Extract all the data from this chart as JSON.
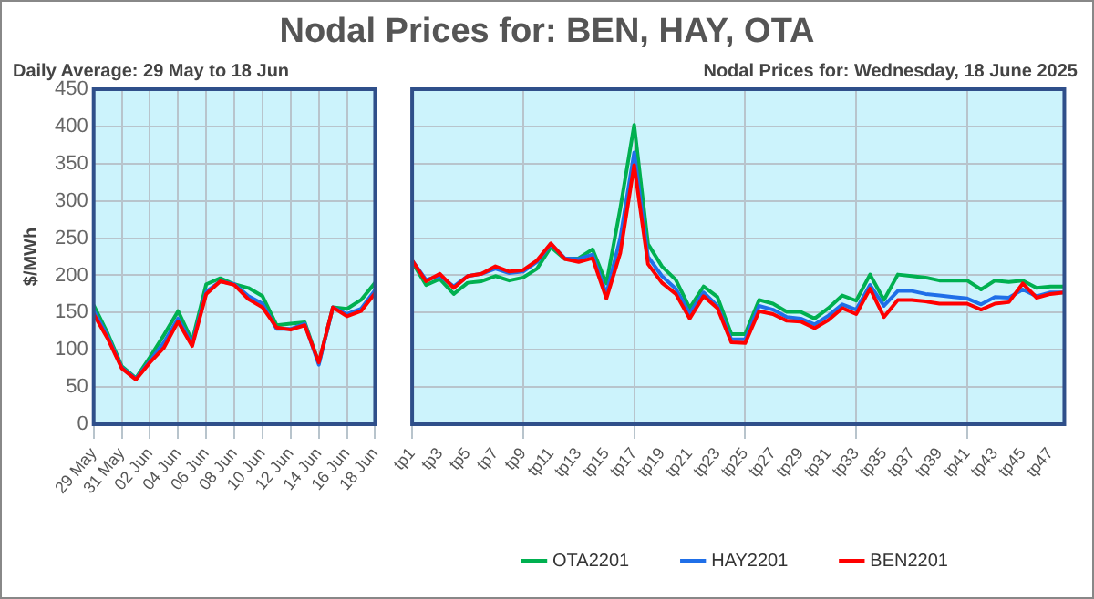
{
  "chart_data": [
    {
      "type": "line",
      "title": "Nodal Prices for: BEN, HAY, OTA",
      "subtitle": "Daily Average: 29 May to 18 Jun",
      "ylabel": "$/MWh",
      "categories": [
        "29 May",
        null,
        "31 May",
        null,
        "02 Jun",
        null,
        "04 Jun",
        null,
        "06 Jun",
        null,
        "08 Jun",
        null,
        "10 Jun",
        null,
        "12 Jun",
        null,
        "14 Jun",
        null,
        "16 Jun",
        null,
        "18 Jun"
      ],
      "ylim": [
        0,
        450
      ],
      "yticks": [
        0,
        50,
        100,
        150,
        200,
        250,
        300,
        350,
        400,
        450
      ],
      "grid": true,
      "marker": "none",
      "line_style": "solid",
      "legend": false,
      "series": [
        {
          "color": "#00b050",
          "values": [
            160,
            122,
            78,
            62,
            90,
            120,
            152,
            112,
            188,
            196,
            188,
            183,
            172,
            133,
            135,
            137,
            82,
            157,
            155,
            167,
            190
          ]
        },
        {
          "color": "#1f6fe8",
          "values": [
            153,
            118,
            76,
            61,
            85,
            110,
            142,
            108,
            178,
            192,
            188,
            172,
            162,
            128,
            128,
            135,
            80,
            157,
            148,
            155,
            180
          ]
        },
        {
          "color": "#ff0000",
          "values": [
            148,
            115,
            75,
            60,
            83,
            103,
            138,
            105,
            175,
            192,
            187,
            168,
            157,
            130,
            127,
            133,
            83,
            157,
            145,
            152,
            176
          ]
        }
      ]
    },
    {
      "type": "line",
      "subtitle": "Nodal Prices for: Wednesday, 18 June 2025",
      "categories": [
        "tp1",
        null,
        "tp3",
        null,
        "tp5",
        null,
        "tp7",
        null,
        "tp9",
        null,
        "tp11",
        null,
        "tp13",
        null,
        "tp15",
        null,
        "tp17",
        null,
        "tp19",
        null,
        "tp21",
        null,
        "tp23",
        null,
        "tp25",
        null,
        "tp27",
        null,
        "tp29",
        null,
        "tp31",
        null,
        "tp33",
        null,
        "tp35",
        null,
        "tp37",
        null,
        "tp39",
        null,
        "tp41",
        null,
        "tp43",
        null,
        "tp45",
        null,
        "tp47",
        null
      ],
      "ylim": [
        0,
        450
      ],
      "yticks": [
        0,
        50,
        100,
        150,
        200,
        250,
        300,
        350,
        400,
        450
      ],
      "tick_labels": "x",
      "grid": true,
      "marker": "none",
      "line_style": "solid",
      "legend": "bottom",
      "series": [
        {
          "name": "OTA2201",
          "color": "#00b050",
          "values": [
            218,
            187,
            195,
            175,
            190,
            192,
            199,
            193,
            197,
            209,
            238,
            222,
            223,
            235,
            189,
            290,
            402,
            242,
            212,
            194,
            156,
            185,
            171,
            121,
            121,
            167,
            162,
            151,
            151,
            142,
            156,
            173,
            166,
            201,
            167,
            201,
            199,
            197,
            193,
            193,
            193,
            181,
            193,
            191,
            193,
            183,
            185,
            185
          ]
        },
        {
          "name": "HAY2201",
          "color": "#1f6fe8",
          "values": [
            220,
            194,
            199,
            185,
            199,
            202,
            209,
            203,
            205,
            218,
            242,
            223,
            222,
            228,
            175,
            250,
            365,
            225,
            199,
            182,
            149,
            177,
            159,
            114,
            114,
            159,
            154,
            144,
            142,
            134,
            146,
            161,
            154,
            187,
            159,
            179,
            179,
            175,
            173,
            171,
            169,
            161,
            171,
            170,
            181,
            172,
            177,
            177
          ]
        },
        {
          "name": "BEN2201",
          "color": "#ff0000",
          "values": [
            220,
            192,
            202,
            183,
            199,
            202,
            212,
            205,
            207,
            220,
            243,
            222,
            218,
            223,
            169,
            230,
            348,
            215,
            190,
            175,
            142,
            172,
            156,
            110,
            109,
            152,
            148,
            139,
            138,
            129,
            140,
            156,
            148,
            182,
            144,
            167,
            167,
            165,
            162,
            162,
            162,
            154,
            162,
            164,
            189,
            170,
            175,
            177
          ]
        }
      ]
    }
  ]
}
